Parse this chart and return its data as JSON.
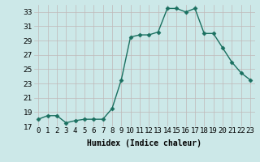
{
  "x": [
    0,
    1,
    2,
    3,
    4,
    5,
    6,
    7,
    8,
    9,
    10,
    11,
    12,
    13,
    14,
    15,
    16,
    17,
    18,
    19,
    20,
    21,
    22,
    23
  ],
  "y": [
    18.0,
    18.5,
    18.5,
    17.5,
    17.8,
    18.0,
    18.0,
    18.0,
    19.5,
    23.5,
    29.5,
    29.8,
    29.8,
    30.2,
    33.5,
    33.5,
    33.0,
    33.5,
    30.0,
    30.0,
    28.0,
    26.0,
    24.5,
    23.5
  ],
  "line_color": "#1a7060",
  "marker": "D",
  "marker_size": 2.5,
  "bg_color": "#cce8e8",
  "grid_color": "#c0b8b8",
  "xlabel": "Humidex (Indice chaleur)",
  "ylim": [
    17,
    34
  ],
  "xlim": [
    -0.5,
    23.5
  ],
  "yticks": [
    17,
    19,
    21,
    23,
    25,
    27,
    29,
    31,
    33
  ],
  "xticks": [
    0,
    1,
    2,
    3,
    4,
    5,
    6,
    7,
    8,
    9,
    10,
    11,
    12,
    13,
    14,
    15,
    16,
    17,
    18,
    19,
    20,
    21,
    22,
    23
  ],
  "xtick_labels": [
    "0",
    "1",
    "2",
    "3",
    "4",
    "5",
    "6",
    "7",
    "8",
    "9",
    "10",
    "11",
    "12",
    "13",
    "14",
    "15",
    "16",
    "17",
    "18",
    "19",
    "20",
    "21",
    "22",
    "23"
  ],
  "xlabel_fontsize": 7,
  "tick_fontsize": 6.5,
  "linewidth": 1.0
}
